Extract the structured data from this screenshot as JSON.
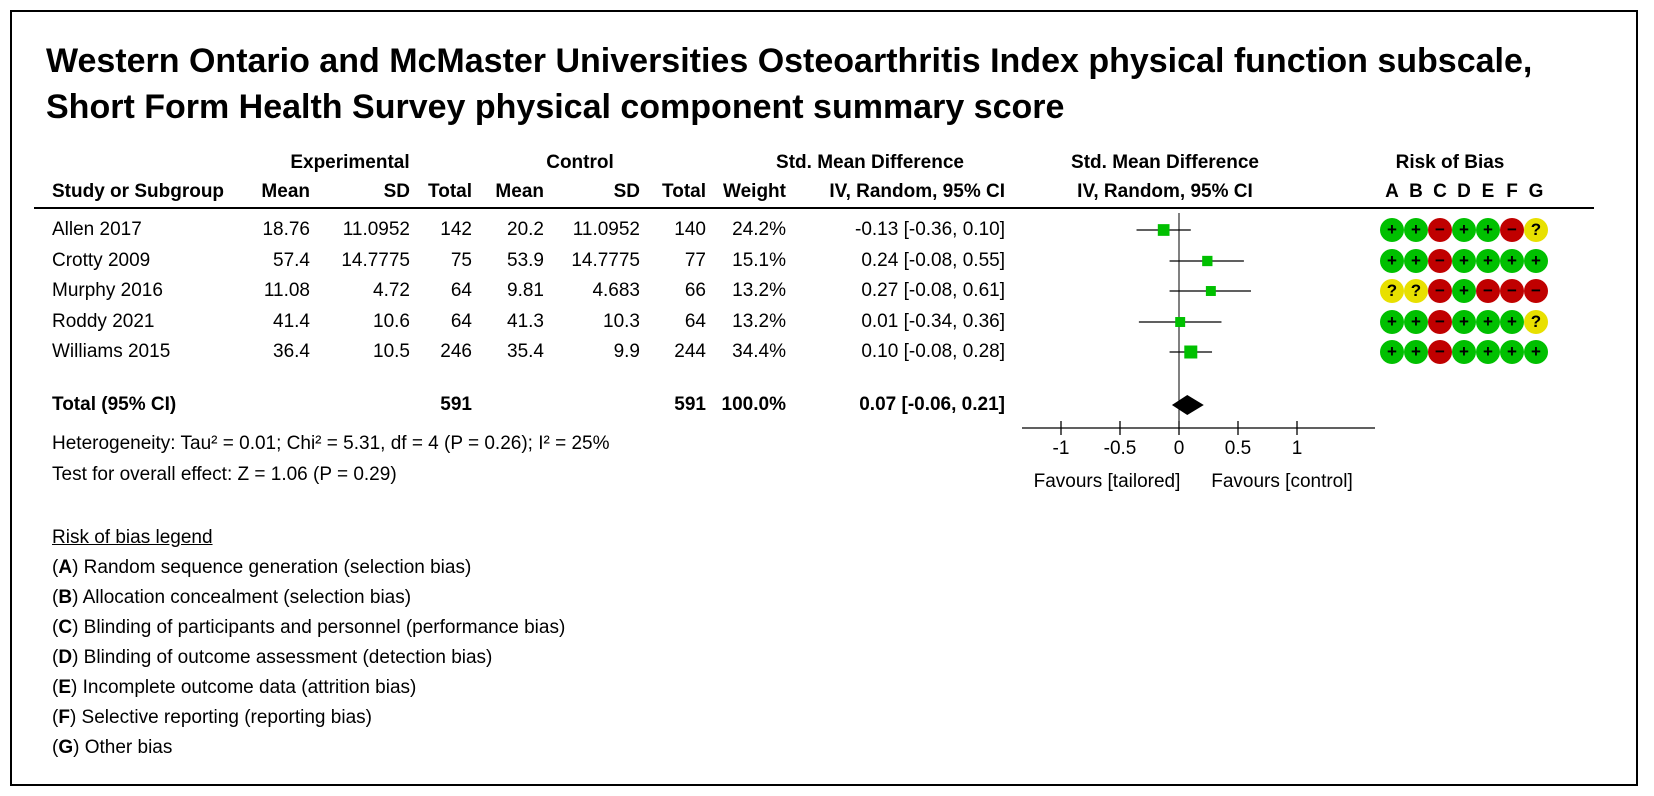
{
  "title": "Western Ontario and McMaster Universities Osteoarthritis Index physical function subscale, Short Form Health Survey physical component summary score",
  "header": {
    "experimental": "Experimental",
    "control": "Control",
    "smd_col": "Std. Mean Difference",
    "smd_plot": "Std. Mean Difference",
    "rob": "Risk of Bias",
    "study": "Study or Subgroup",
    "mean_e": "Mean",
    "sd_e": "SD",
    "total_e": "Total",
    "mean_c": "Mean",
    "sd_c": "SD",
    "total_c": "Total",
    "weight": "Weight",
    "method_col": "IV, Random, 95% CI",
    "method_plot": "IV, Random, 95% CI",
    "rob_letters": [
      "A",
      "B",
      "C",
      "D",
      "E",
      "F",
      "G"
    ]
  },
  "rows": [
    {
      "study": "Allen 2017",
      "mean_e": "18.76",
      "sd_e": "11.0952",
      "total_e": "142",
      "mean_c": "20.2",
      "sd_c": "11.0952",
      "total_c": "140",
      "weight": "24.2%",
      "ci_text": "-0.13 [-0.36, 0.10]"
    },
    {
      "study": "Crotty 2009",
      "mean_e": "57.4",
      "sd_e": "14.7775",
      "total_e": "75",
      "mean_c": "53.9",
      "sd_c": "14.7775",
      "total_c": "77",
      "weight": "15.1%",
      "ci_text": "0.24 [-0.08, 0.55]"
    },
    {
      "study": "Murphy 2016",
      "mean_e": "11.08",
      "sd_e": "4.72",
      "total_e": "64",
      "mean_c": "9.81",
      "sd_c": "4.683",
      "total_c": "66",
      "weight": "13.2%",
      "ci_text": "0.27 [-0.08, 0.61]"
    },
    {
      "study": "Roddy 2021",
      "mean_e": "41.4",
      "sd_e": "10.6",
      "total_e": "64",
      "mean_c": "41.3",
      "sd_c": "10.3",
      "total_c": "64",
      "weight": "13.2%",
      "ci_text": "0.01 [-0.34, 0.36]"
    },
    {
      "study": "Williams 2015",
      "mean_e": "36.4",
      "sd_e": "10.5",
      "total_e": "246",
      "mean_c": "35.4",
      "sd_c": "9.9",
      "total_c": "244",
      "weight": "34.4%",
      "ci_text": "0.10 [-0.08, 0.28]"
    }
  ],
  "total": {
    "label": "Total (95% CI)",
    "total_e": "591",
    "total_c": "591",
    "weight": "100.0%",
    "ci_text": "0.07 [-0.06, 0.21]"
  },
  "heterogeneity": "Heterogeneity: Tau² = 0.01; Chi² = 5.31, df = 4 (P = 0.26); I² = 25%",
  "overall_effect": "Test for overall effect: Z = 1.06 (P = 0.29)",
  "legend": {
    "title": "Risk of bias legend",
    "items": [
      {
        "letter": "A",
        "text": "Random sequence generation (selection bias)"
      },
      {
        "letter": "B",
        "text": "Allocation concealment (selection bias)"
      },
      {
        "letter": "C",
        "text": "Blinding of participants and personnel (performance bias)"
      },
      {
        "letter": "D",
        "text": "Blinding of outcome assessment (detection bias)"
      },
      {
        "letter": "E",
        "text": "Incomplete outcome data (attrition bias)"
      },
      {
        "letter": "F",
        "text": "Selective reporting (reporting bias)"
      },
      {
        "letter": "G",
        "text": "Other bias"
      }
    ]
  },
  "colors": {
    "low": "#00c000",
    "high": "#c00000",
    "unclear": "#e8e000",
    "marker": "#00c000",
    "diamond": "#000000"
  },
  "chart_data": {
    "type": "forest",
    "xlim": [
      -1,
      1
    ],
    "ticks": [
      -1,
      -0.5,
      0,
      0.5,
      1
    ],
    "tick_labels": [
      "-1",
      "-0.5",
      "0",
      "0.5",
      "1"
    ],
    "favours_left": "Favours [tailored]",
    "favours_right": "Favours [control]",
    "studies": [
      {
        "name": "Allen 2017",
        "smd": -0.13,
        "lo": -0.36,
        "hi": 0.1,
        "weight": 24.2
      },
      {
        "name": "Crotty 2009",
        "smd": 0.24,
        "lo": -0.08,
        "hi": 0.55,
        "weight": 15.1
      },
      {
        "name": "Murphy 2016",
        "smd": 0.27,
        "lo": -0.08,
        "hi": 0.61,
        "weight": 13.2
      },
      {
        "name": "Roddy 2021",
        "smd": 0.01,
        "lo": -0.34,
        "hi": 0.36,
        "weight": 13.2
      },
      {
        "name": "Williams 2015",
        "smd": 0.1,
        "lo": -0.08,
        "hi": 0.28,
        "weight": 34.4
      }
    ],
    "pooled": {
      "smd": 0.07,
      "lo": -0.06,
      "hi": 0.21
    },
    "risk_of_bias": [
      [
        "low",
        "low",
        "high",
        "low",
        "low",
        "high",
        "unclear"
      ],
      [
        "low",
        "low",
        "high",
        "low",
        "low",
        "low",
        "low"
      ],
      [
        "unclear",
        "unclear",
        "high",
        "low",
        "high",
        "high",
        "high"
      ],
      [
        "low",
        "low",
        "high",
        "low",
        "low",
        "low",
        "unclear"
      ],
      [
        "low",
        "low",
        "high",
        "low",
        "low",
        "low",
        "low"
      ]
    ]
  }
}
